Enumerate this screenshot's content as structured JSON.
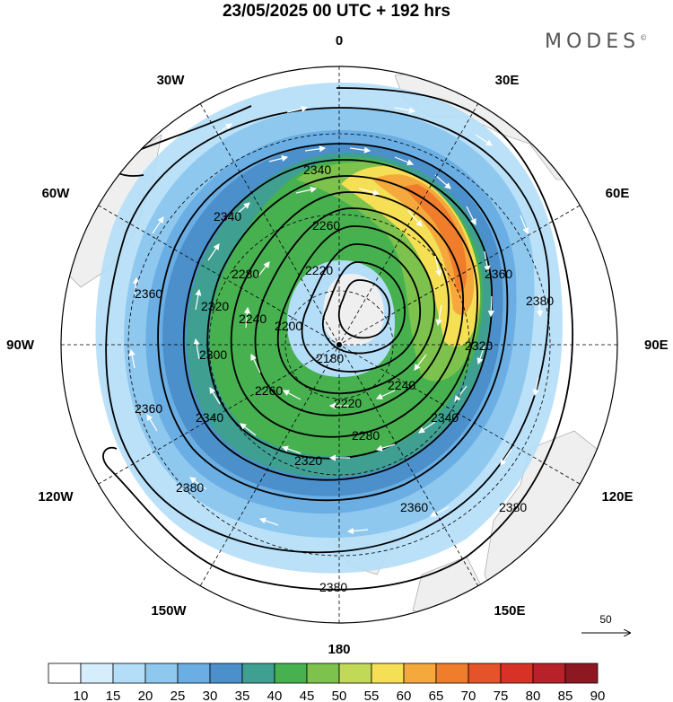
{
  "title": "23/05/2025  00 UTC  + 192 hrs",
  "brand": "MODES",
  "brand_mark": "©",
  "longitude_labels": [
    "0",
    "30E",
    "60E",
    "90E",
    "120E",
    "150E",
    "180",
    "150W",
    "120W",
    "90W",
    "60W",
    "30W"
  ],
  "contour_labels": [
    "2340",
    "2340",
    "2260",
    "2220",
    "2280",
    "2320",
    "2360",
    "2380",
    "2360",
    "2240",
    "2200",
    "2180",
    "2220",
    "2240",
    "2320",
    "2300",
    "2260",
    "2280",
    "2340",
    "2320",
    "2360",
    "2380",
    "2360",
    "2380",
    "2340",
    "2380"
  ],
  "vector_reference": {
    "value": "50"
  },
  "colorbar": {
    "ticks": [
      "10",
      "15",
      "20",
      "25",
      "30",
      "35",
      "40",
      "45",
      "50",
      "55",
      "60",
      "65",
      "70",
      "75",
      "80",
      "85",
      "90"
    ],
    "colors": [
      "#ffffff",
      "#d6eefc",
      "#b4def8",
      "#8ec8ef",
      "#6aaee3",
      "#4b8fcb",
      "#3f9f91",
      "#47b150",
      "#7cc24c",
      "#c2d957",
      "#f5df55",
      "#f5a83c",
      "#ef7d2c",
      "#e5532a",
      "#d83227",
      "#b8202a",
      "#8e1822"
    ]
  },
  "colors": {
    "land": "#f0f0f0",
    "ocean": "#ffffff",
    "contour": "#000000",
    "arrows": "#ffffff"
  }
}
